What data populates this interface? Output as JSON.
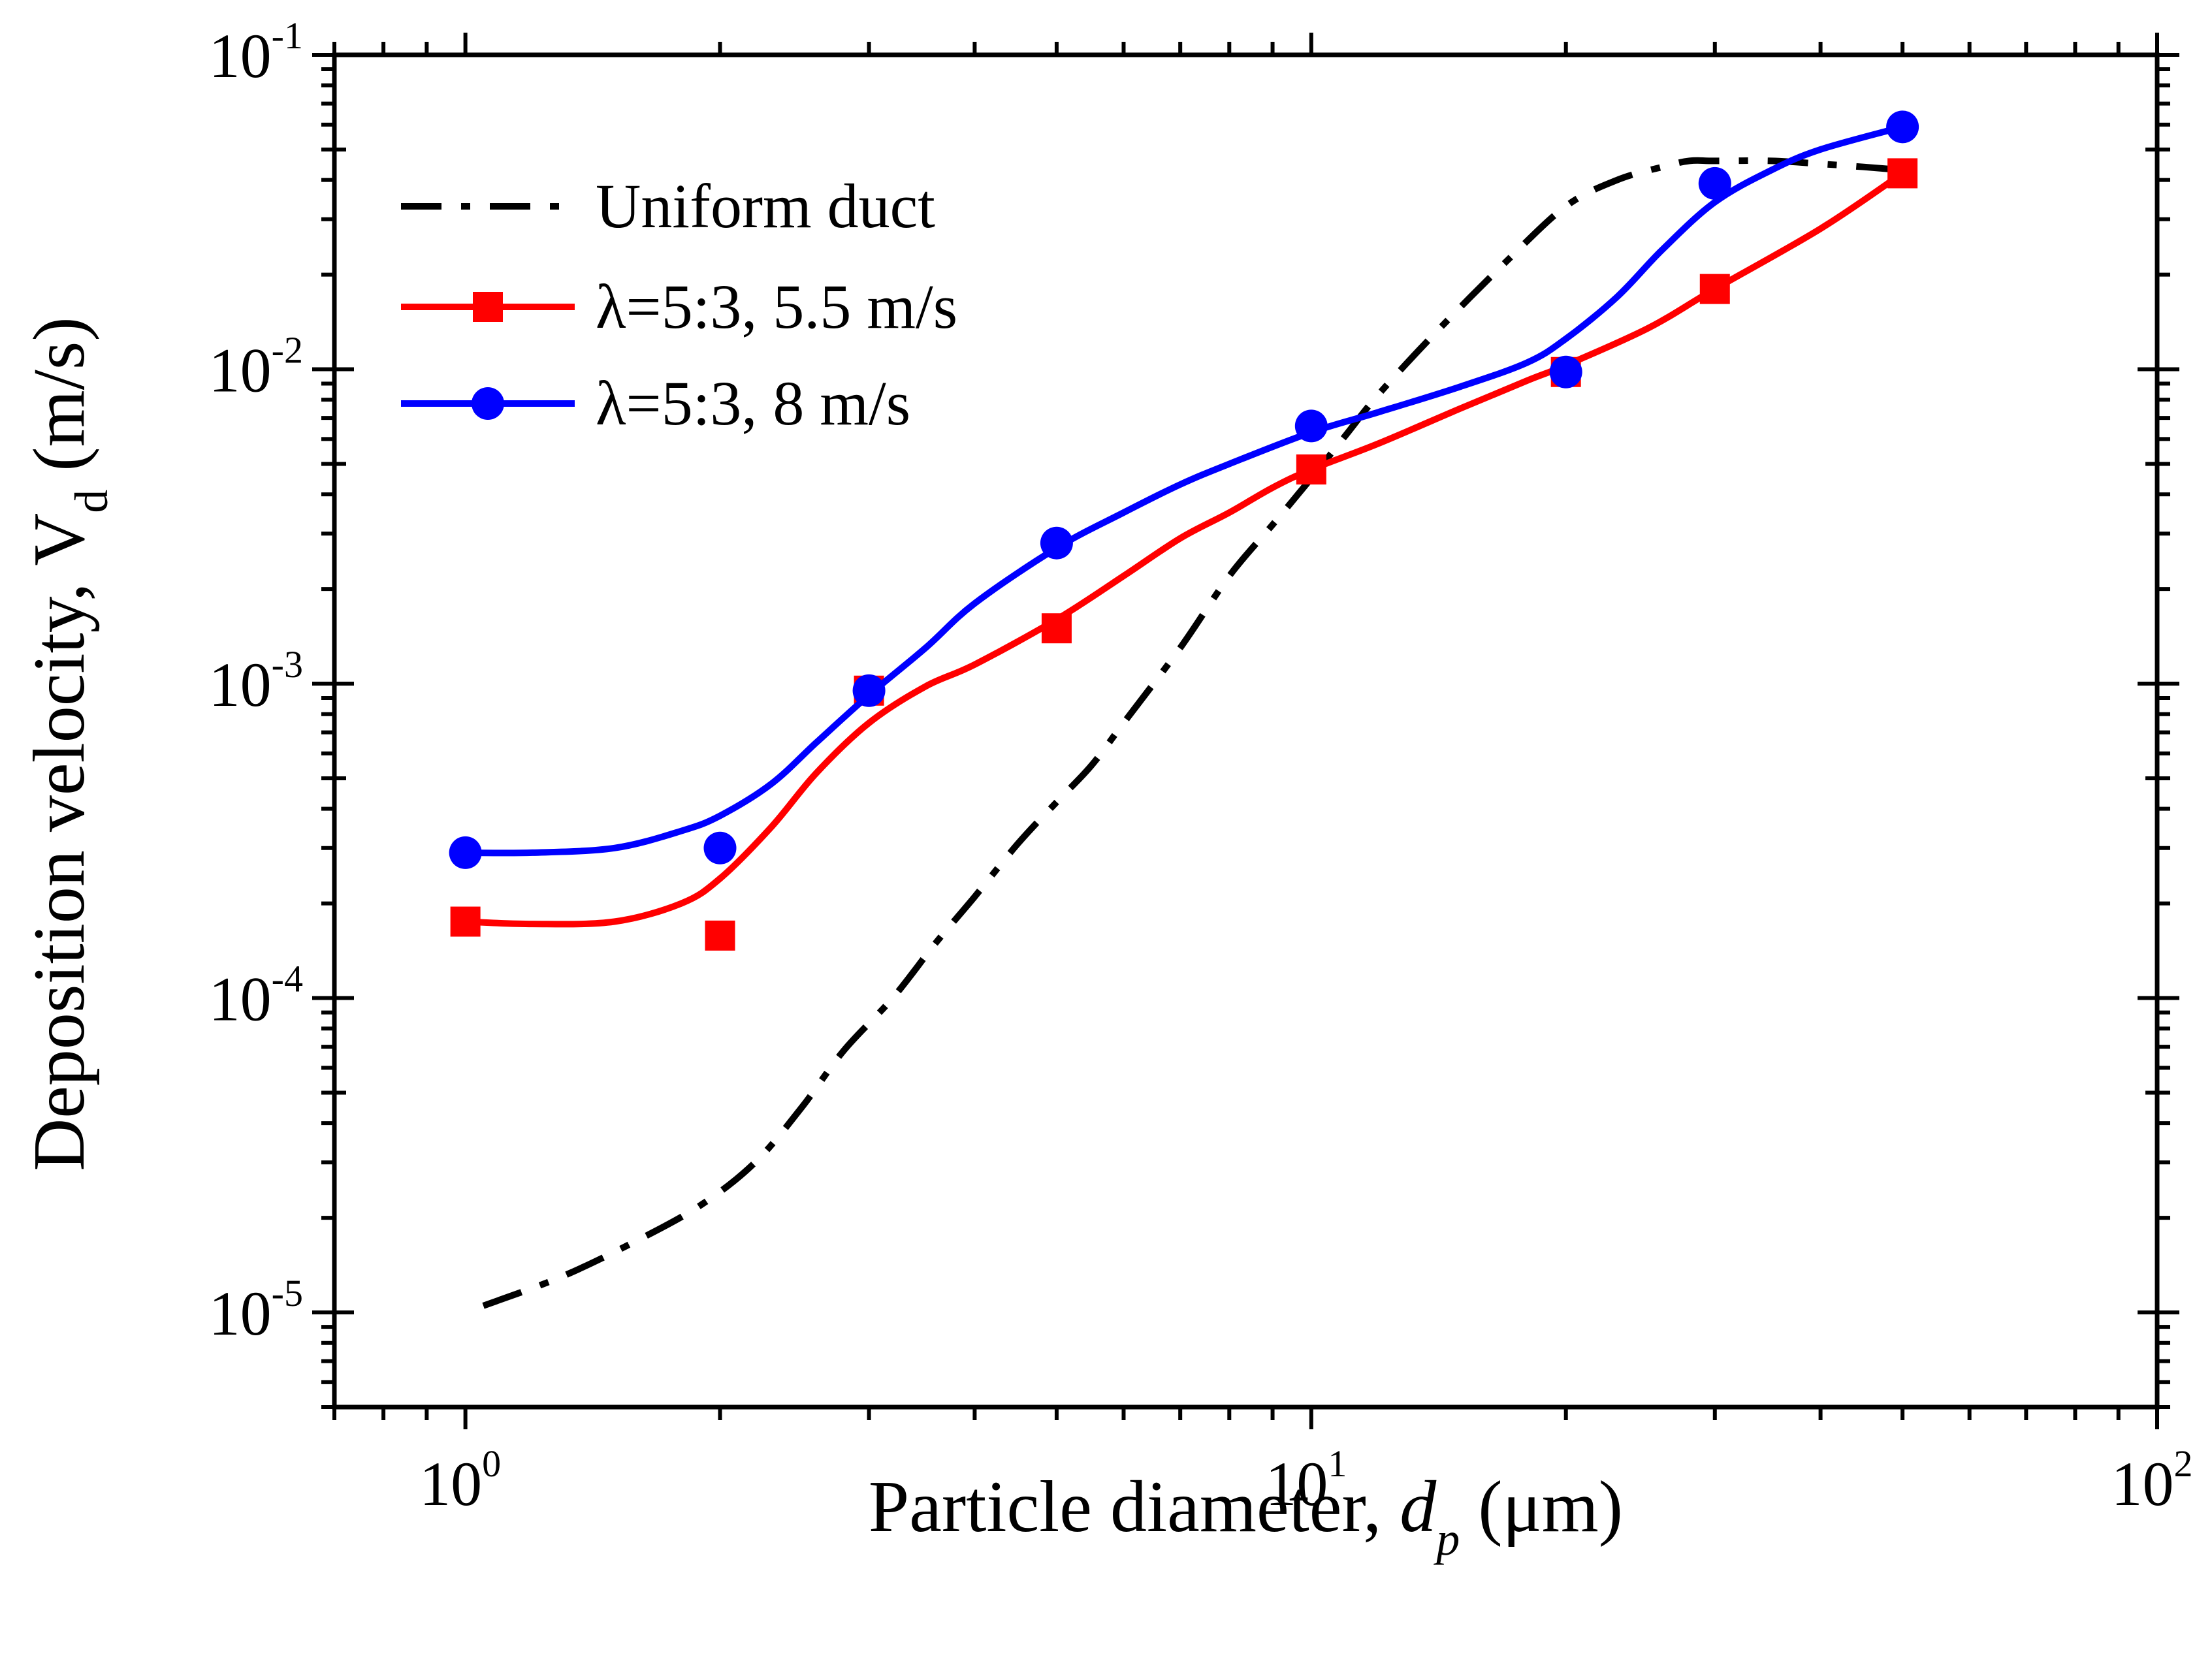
{
  "chart_data": {
    "type": "line",
    "xscale": "log",
    "yscale": "log",
    "xlim": [
      0.7,
      100
    ],
    "ylim": [
      5e-06,
      0.1
    ],
    "xlabel": {
      "prefix": "Particle diameter, ",
      "var": "d",
      "sub": "p",
      "suffix": " (μm)"
    },
    "ylabel": {
      "prefix": "Deposition velocity, V",
      "sub": "d",
      "suffix": " (m/s)"
    },
    "x_ticks": [
      {
        "value": 1,
        "base": "10",
        "exp": "0"
      },
      {
        "value": 10,
        "base": "10",
        "exp": "1"
      },
      {
        "value": 100,
        "base": "10",
        "exp": "2"
      }
    ],
    "y_ticks": [
      {
        "value": 1e-05,
        "base": "10",
        "exp": "-5"
      },
      {
        "value": 0.0001,
        "base": "10",
        "exp": "-4"
      },
      {
        "value": 0.001,
        "base": "10",
        "exp": "-3"
      },
      {
        "value": 0.01,
        "base": "10",
        "exp": "-2"
      },
      {
        "value": 0.1,
        "base": "10",
        "exp": "-1"
      }
    ],
    "legend_position": "top-left",
    "series": [
      {
        "name": "Uniform duct",
        "color": "#000000",
        "style": "dash-dot",
        "marker": "none",
        "curve_x": [
          1.05,
          1.3,
          1.6,
          1.9,
          2.2,
          2.5,
          2.8,
          3.2,
          3.6,
          4.0,
          4.5,
          5.0,
          5.5,
          6.0,
          7.0,
          8.0,
          9.0,
          10.0,
          11.0,
          12.0,
          14.0,
          17.0,
          20.0,
          23.0,
          26.0,
          28.0,
          30.0,
          35.0,
          40.0,
          45.0,
          50.0
        ],
        "curve_y": [
          1.05e-05,
          1.3e-05,
          1.7e-05,
          2.2e-05,
          3e-05,
          4.5e-05,
          6.8e-05,
          0.0001,
          0.00015,
          0.00021,
          0.00031,
          0.00042,
          0.00055,
          0.00075,
          0.0013,
          0.0022,
          0.0032,
          0.0045,
          0.0062,
          0.0083,
          0.013,
          0.022,
          0.033,
          0.04,
          0.044,
          0.046,
          0.046,
          0.046,
          0.045,
          0.044,
          0.043
        ]
      },
      {
        "name": "λ=5:3, 5.5 m/s",
        "color": "#ff0000",
        "style": "solid",
        "marker": "square",
        "points_x": [
          1,
          2,
          3,
          5,
          10,
          20,
          30,
          50
        ],
        "points_y": [
          0.000175,
          0.000158,
          0.00095,
          0.0015,
          0.0048,
          0.0098,
          0.018,
          0.042
        ],
        "curve_x": [
          1.0,
          1.2,
          1.5,
          1.8,
          2.0,
          2.3,
          2.6,
          3.0,
          3.5,
          4.0,
          5.0,
          6.0,
          7.0,
          8.0,
          9.0,
          10.0,
          12.0,
          15.0,
          18.0,
          20.0,
          25.0,
          30.0,
          40.0,
          50.0
        ],
        "curve_y": [
          0.000175,
          0.000172,
          0.000175,
          0.0002,
          0.00024,
          0.00035,
          0.00052,
          0.00075,
          0.00098,
          0.00115,
          0.0016,
          0.0022,
          0.0029,
          0.0035,
          0.0042,
          0.0048,
          0.0058,
          0.0075,
          0.0092,
          0.0103,
          0.0135,
          0.018,
          0.028,
          0.042
        ]
      },
      {
        "name": "λ=5:3, 8 m/s",
        "color": "#0000ff",
        "style": "solid",
        "marker": "circle",
        "points_x": [
          1,
          2,
          3,
          5,
          10,
          20,
          30,
          50
        ],
        "points_y": [
          0.00029,
          0.0003,
          0.00095,
          0.0028,
          0.0066,
          0.0098,
          0.039,
          0.059
        ],
        "curve_x": [
          1.0,
          1.2,
          1.5,
          1.8,
          2.0,
          2.3,
          2.6,
          3.0,
          3.5,
          4.0,
          5.0,
          6.0,
          7.0,
          8.0,
          10.0,
          12.0,
          15.0,
          18.0,
          20.0,
          23.0,
          26.0,
          30.0,
          35.0,
          40.0,
          50.0
        ],
        "curve_y": [
          0.00029,
          0.00029,
          0.0003,
          0.00034,
          0.00038,
          0.00048,
          0.00065,
          0.00092,
          0.0013,
          0.0018,
          0.0027,
          0.0035,
          0.0043,
          0.005,
          0.0063,
          0.0073,
          0.0088,
          0.0105,
          0.0125,
          0.017,
          0.024,
          0.034,
          0.043,
          0.05,
          0.059
        ]
      }
    ]
  }
}
